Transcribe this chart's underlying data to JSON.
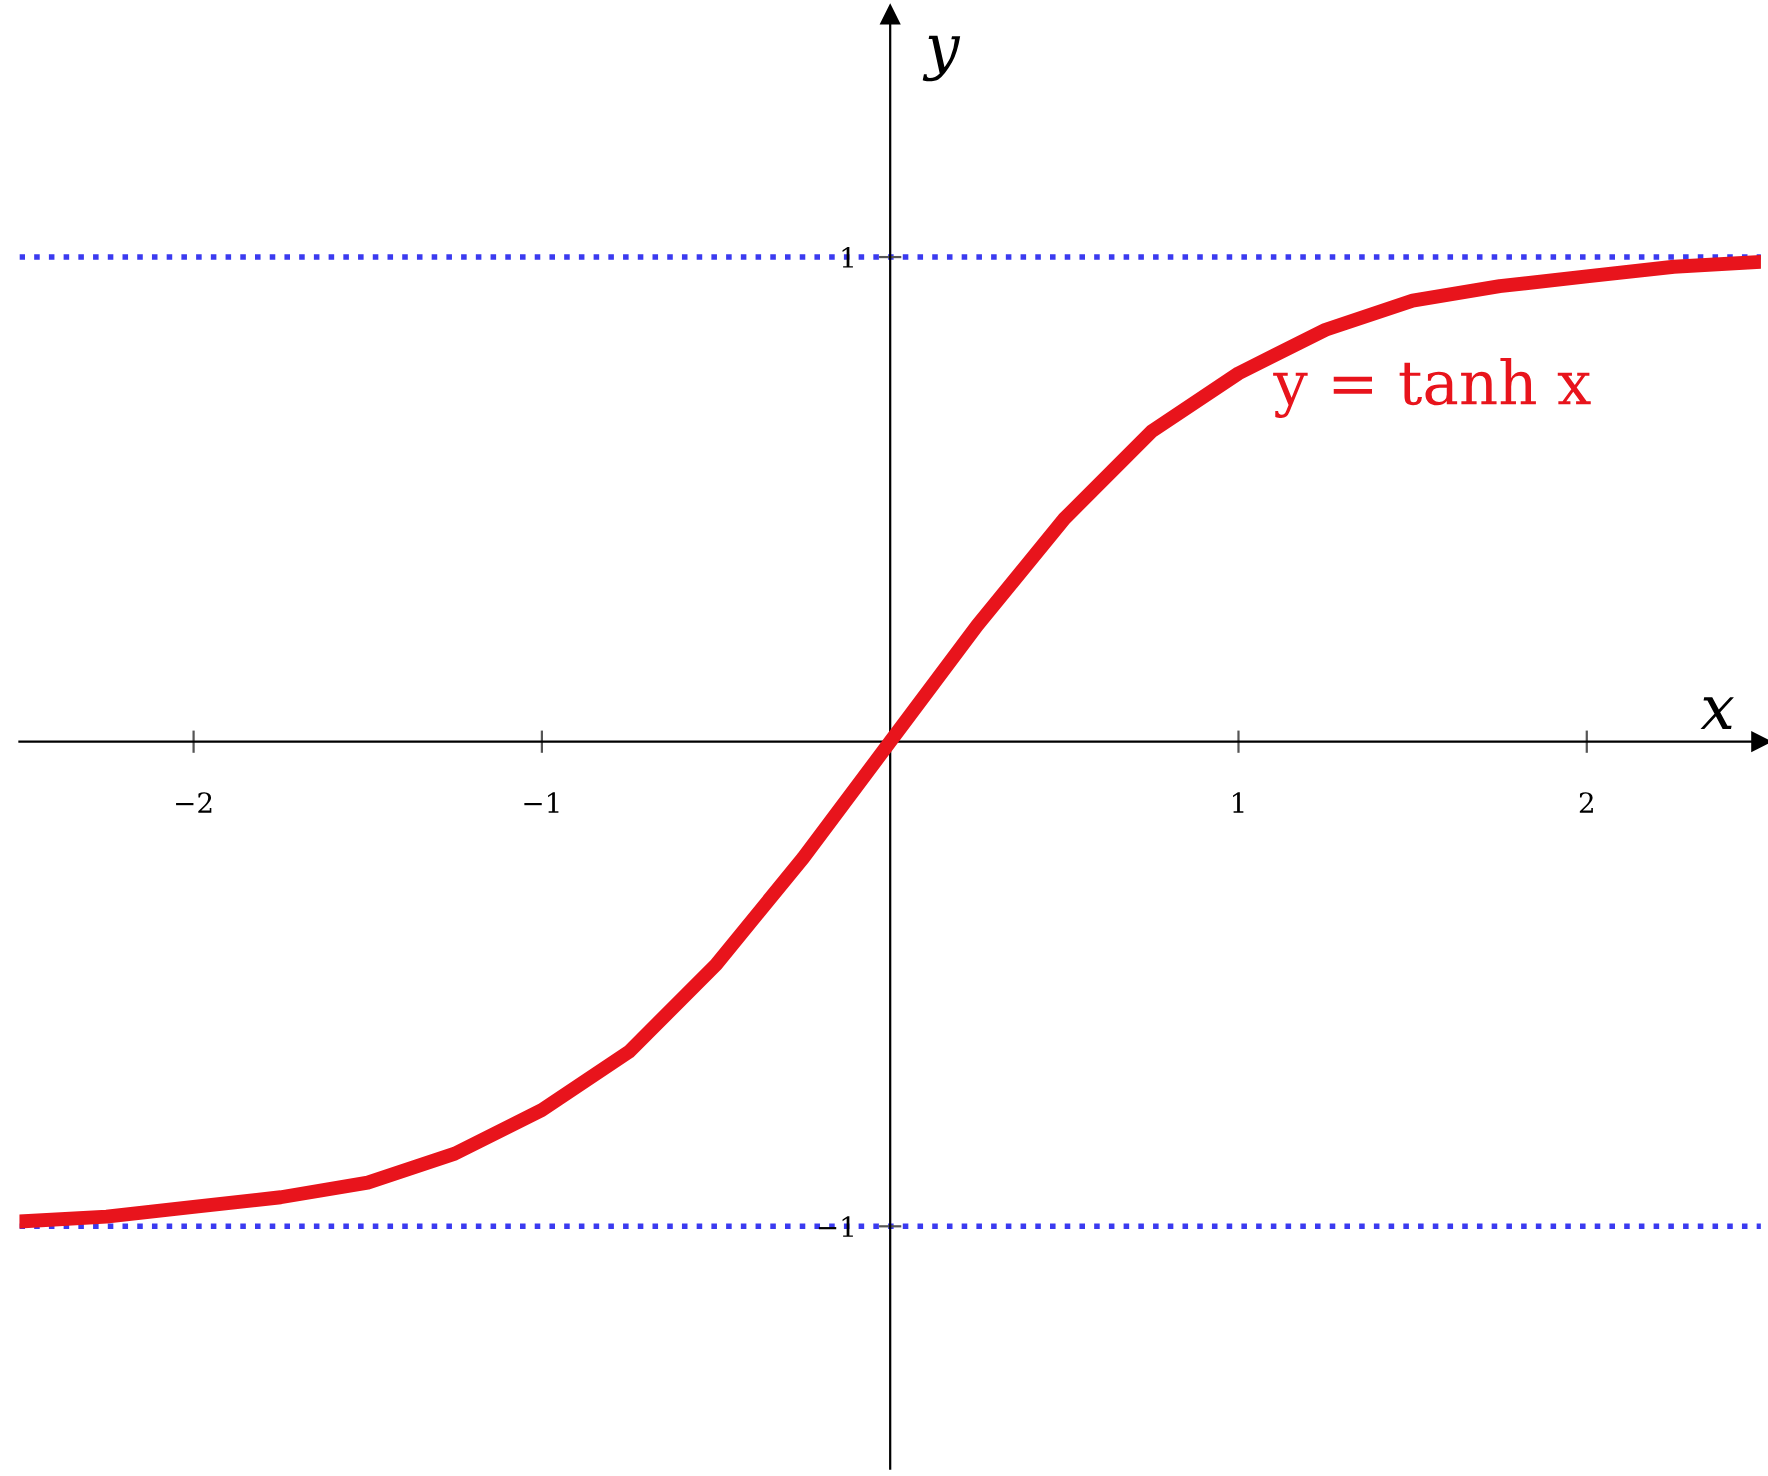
{
  "chart_data": {
    "type": "line",
    "xlabel": "x",
    "ylabel": "y",
    "x": [
      -2.5,
      -2.25,
      -2.0,
      -1.75,
      -1.5,
      -1.25,
      -1.0,
      -0.75,
      -0.5,
      -0.25,
      0,
      0.25,
      0.5,
      0.75,
      1.0,
      1.25,
      1.5,
      1.75,
      2.0,
      2.25,
      2.5
    ],
    "series": [
      {
        "name": "y = tanh x",
        "color": "#e8141c",
        "values": [
          -0.99,
          -0.98,
          -0.96,
          -0.94,
          -0.91,
          -0.85,
          -0.76,
          -0.64,
          -0.46,
          -0.24,
          0,
          0.24,
          0.46,
          0.64,
          0.76,
          0.85,
          0.91,
          0.94,
          0.96,
          0.98,
          0.99
        ]
      }
    ],
    "xlim": [
      -2.5,
      2.5
    ],
    "ylim": [
      -1.5,
      1.5
    ],
    "xticks": [
      {
        "value": -2,
        "label": "−2"
      },
      {
        "value": -1,
        "label": "−1"
      },
      1,
      2
    ],
    "yticks": [
      {
        "value": -1,
        "label": "−1"
      },
      1
    ],
    "ref_lines": [
      {
        "axis": "y",
        "value": 1,
        "label": null,
        "color": "#3a3af0",
        "line_style": "dotted"
      },
      {
        "axis": "y",
        "value": -1,
        "label": null,
        "color": "#3a3af0",
        "line_style": "dotted"
      }
    ],
    "grid": false,
    "legend": false,
    "marker": "none",
    "line_style": "solid"
  }
}
